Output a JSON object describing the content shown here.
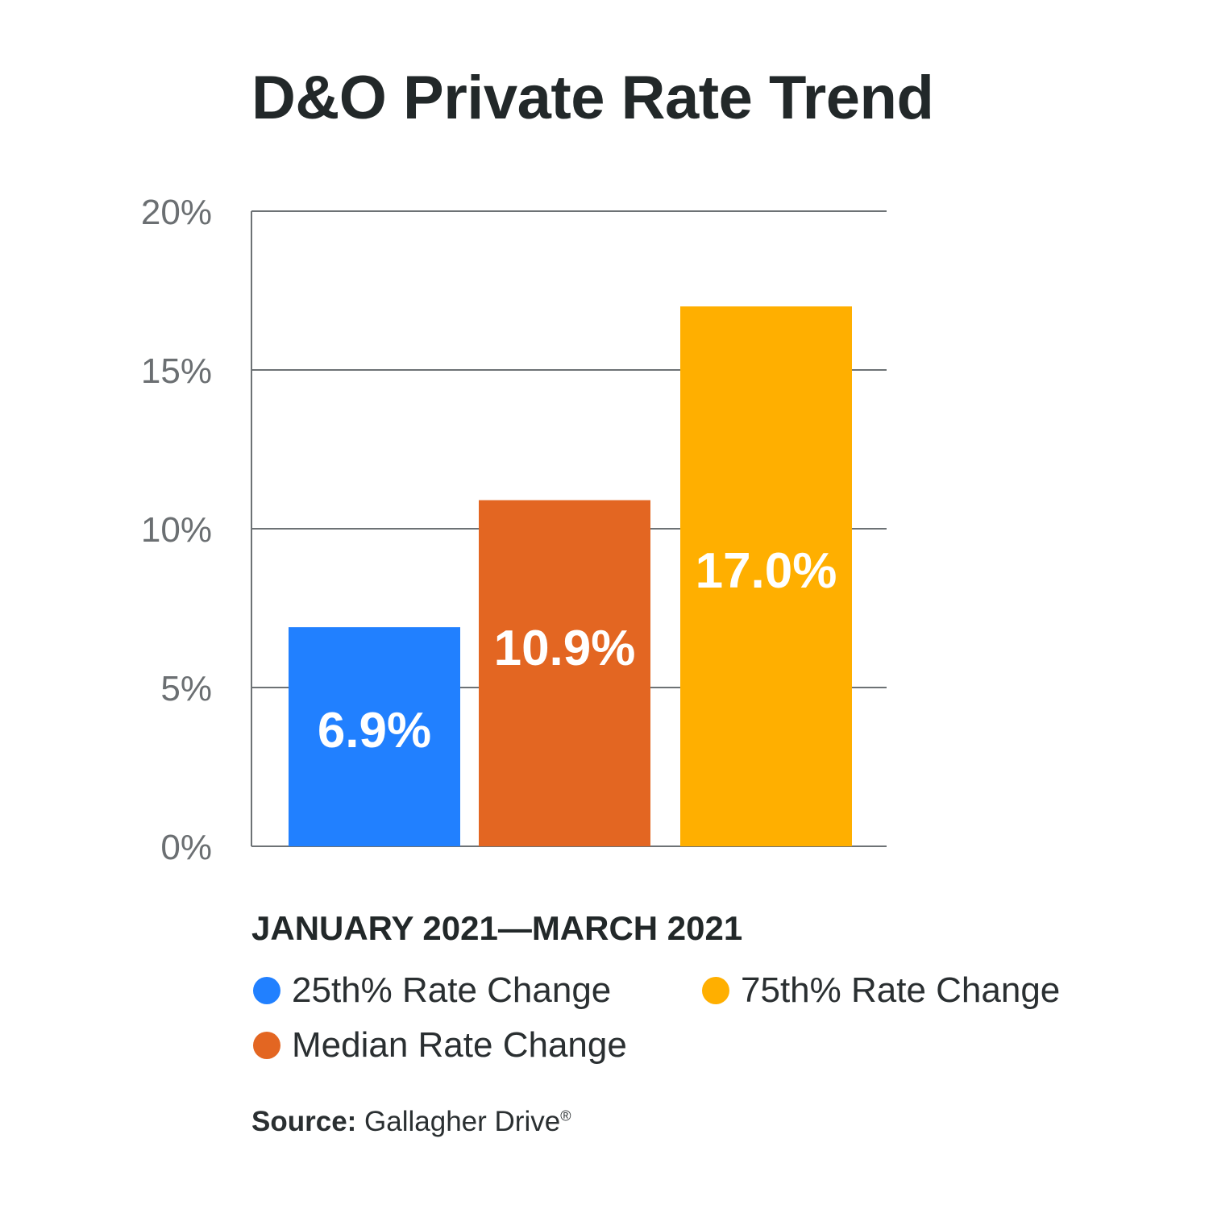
{
  "chart_data": {
    "type": "bar",
    "title": "D&O Private Rate Trend",
    "subtitle": "JANUARY 2021—MARCH 2021",
    "categories": [
      "25th% Rate Change",
      "Median Rate Change",
      "75th% Rate Change"
    ],
    "values": [
      6.9,
      10.9,
      17.0
    ],
    "value_labels": [
      "6.9%",
      "10.9%",
      "17.0%"
    ],
    "colors": [
      "#2180FF",
      "#E36622",
      "#FFAF00"
    ],
    "ylim": [
      0,
      20
    ],
    "yticks": [
      0,
      5,
      10,
      15,
      20
    ],
    "ytick_labels": [
      "0%",
      "5%",
      "10%",
      "15%",
      "20%"
    ],
    "xlabel": "",
    "ylabel": "",
    "grid": true,
    "legend_placement": "bottom"
  },
  "legend": [
    {
      "label": "25th% Rate Change",
      "color": "#2180FF"
    },
    {
      "label": "75th% Rate Change",
      "color": "#FFAF00"
    },
    {
      "label": "Median Rate Change",
      "color": "#E36622"
    }
  ],
  "source": {
    "label": "Source:",
    "text": "Gallagher Drive",
    "mark": "®"
  }
}
